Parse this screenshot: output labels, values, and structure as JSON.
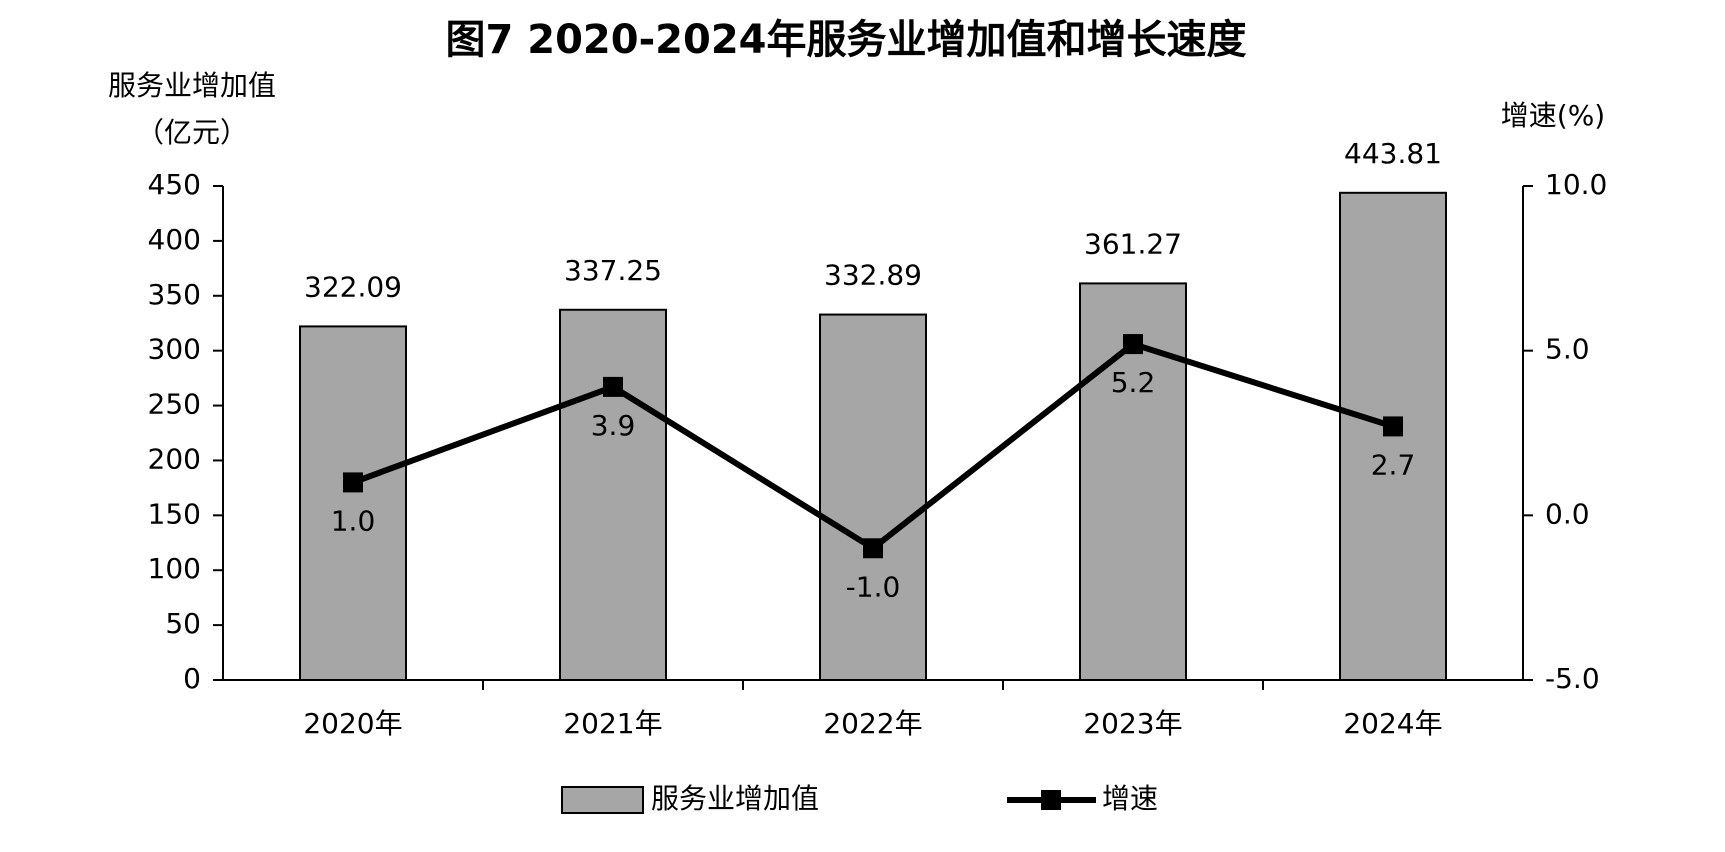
{
  "chart_data": {
    "type": "bar",
    "title": "图7 2020-2024年服务业增加值和增长速度",
    "ylabel": [
      "服务业增加值",
      "（亿元）"
    ],
    "y2label": "增速(%)",
    "categories": [
      "2020年",
      "2021年",
      "2022年",
      "2023年",
      "2024年"
    ],
    "series": [
      {
        "name": "服务业增加值",
        "color": "#a6a6a6",
        "values": [
          322.09,
          337.25,
          332.89,
          361.27,
          443.81
        ]
      },
      {
        "name": "增速",
        "type": "line",
        "axis": "y2",
        "color": "#000000",
        "values": [
          1.0,
          3.9,
          -1.0,
          5.2,
          2.7
        ],
        "value_labels": [
          "1.0",
          "3.9",
          "-1.0",
          "5.2",
          "2.7"
        ]
      }
    ],
    "ylim": [
      0,
      450
    ],
    "yticks": [
      0,
      50,
      100,
      150,
      200,
      250,
      300,
      350,
      400,
      450
    ],
    "y2lim": [
      -5,
      10
    ],
    "y2ticks": [
      {
        "value": -5,
        "label": "-5.0"
      },
      {
        "value": 0,
        "label": "0.0"
      },
      {
        "value": 5,
        "label": "5.0"
      },
      {
        "value": 10,
        "label": "10.0"
      }
    ],
    "grid": false,
    "legend": "bottom"
  }
}
